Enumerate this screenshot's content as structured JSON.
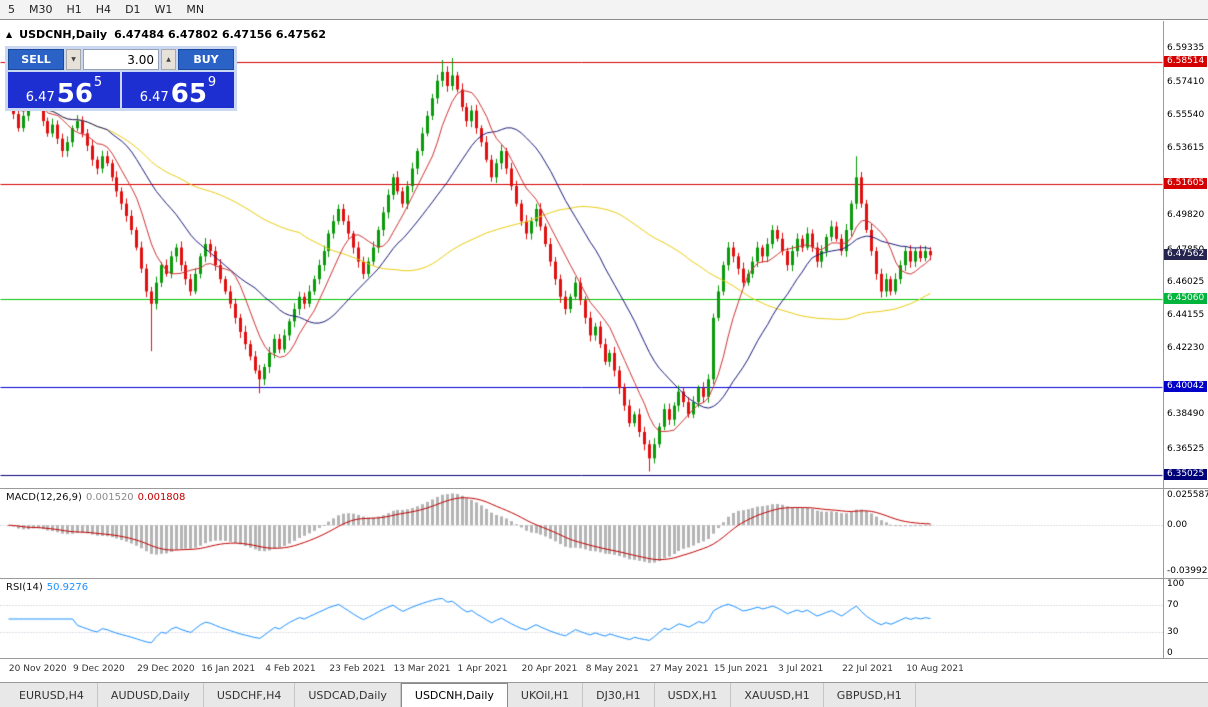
{
  "toolbar": {
    "timeframes": [
      "5",
      "M30",
      "H1",
      "H4",
      "D1",
      "W1",
      "MN"
    ]
  },
  "chart": {
    "title": "USDCNH,Daily",
    "ohlc": "6.47484 6.47802 6.47156 6.47562",
    "marker_icon": "▲"
  },
  "trade_panel": {
    "sell_label": "SELL",
    "buy_label": "BUY",
    "volume": "3.00",
    "decrement_icon": "▼",
    "increment_icon": "▲",
    "sell_price": {
      "prefix": "6.47",
      "big": "56",
      "sup": "5"
    },
    "buy_price": {
      "prefix": "6.47",
      "big": "65",
      "sup": "9"
    }
  },
  "price_axis": {
    "labels": [
      "6.59335",
      "6.57410",
      "6.55540",
      "6.53615",
      "6.49820",
      "6.47850",
      "6.46025",
      "6.44155",
      "6.42230",
      "6.38490",
      "6.36525"
    ],
    "tags": [
      {
        "text": "6.58514",
        "bg": "#d40000"
      },
      {
        "text": "6.51605",
        "bg": "#d40000"
      },
      {
        "text": "6.47562",
        "bg": "#24244e"
      },
      {
        "text": "6.45060",
        "bg": "#00b43c"
      },
      {
        "text": "6.40042",
        "bg": "#0000c8"
      },
      {
        "text": "6.35025",
        "bg": "#000078"
      }
    ]
  },
  "macd": {
    "label": "MACD(12,26,9)",
    "main_value": "0.001520",
    "signal_value": "0.001808",
    "axis": [
      "0.025587",
      "0.00",
      "-0.039928"
    ]
  },
  "rsi": {
    "label": "RSI(14)",
    "value": "50.9276",
    "axis": [
      "100",
      "70",
      "30",
      "0"
    ],
    "levels": [
      70,
      30
    ]
  },
  "date_axis": {
    "first_index": 1,
    "step_candles": 13,
    "labels": [
      "20 Nov 2020",
      "9 Dec 2020",
      "29 Dec 2020",
      "16 Jan 2021",
      "4 Feb 2021",
      "23 Feb 2021",
      "13 Mar 2021",
      "1 Apr 2021",
      "20 Apr 2021",
      "8 May 2021",
      "27 May 2021",
      "15 Jun 2021",
      "3 Jul 2021",
      "22 Jul 2021",
      "10 Aug 2021"
    ]
  },
  "tabs": {
    "items": [
      {
        "label": "EURUSD,H4"
      },
      {
        "label": "AUDUSD,Daily"
      },
      {
        "label": "USDCHF,H4"
      },
      {
        "label": "USDCAD,Daily"
      },
      {
        "label": "USDCNH,Daily",
        "active": true
      },
      {
        "label": "UKOil,H1"
      },
      {
        "label": "DJ30,H1"
      },
      {
        "label": "USDX,H1"
      },
      {
        "label": "XAUUSD,H1"
      },
      {
        "label": "GBPUSD,H1"
      }
    ]
  },
  "chart_data": {
    "type": "candlestick",
    "symbol": "USDCNH",
    "timeframe": "Daily",
    "price_axis_range": {
      "top": 6.60872,
      "bottom": 6.34282
    },
    "first_open": 6.578,
    "closes": [
      6.572,
      6.556,
      6.548,
      6.555,
      6.562,
      6.57,
      6.565,
      6.552,
      6.545,
      6.55,
      6.542,
      6.535,
      6.54,
      6.548,
      6.552,
      6.545,
      6.538,
      6.53,
      6.525,
      6.532,
      6.528,
      6.52,
      6.512,
      6.505,
      6.498,
      6.49,
      6.48,
      6.468,
      6.455,
      6.448,
      6.46,
      6.47,
      6.465,
      6.475,
      6.48,
      6.47,
      6.462,
      6.455,
      6.465,
      6.475,
      6.482,
      6.478,
      6.47,
      6.462,
      6.455,
      6.448,
      6.44,
      6.432,
      6.425,
      6.418,
      6.41,
      6.405,
      6.412,
      6.42,
      6.428,
      6.422,
      6.43,
      6.438,
      6.445,
      6.452,
      6.448,
      6.455,
      6.462,
      6.47,
      6.478,
      6.488,
      6.495,
      6.502,
      6.495,
      6.488,
      6.48,
      6.472,
      6.465,
      6.472,
      6.48,
      6.49,
      6.5,
      6.51,
      6.52,
      6.512,
      6.505,
      6.515,
      6.525,
      6.535,
      6.545,
      6.555,
      6.565,
      6.575,
      6.58,
      6.572,
      6.578,
      6.57,
      6.56,
      6.552,
      6.558,
      6.548,
      6.54,
      6.53,
      6.52,
      6.528,
      6.535,
      6.525,
      6.515,
      6.505,
      6.495,
      6.488,
      6.495,
      6.502,
      6.492,
      6.482,
      6.472,
      6.462,
      6.452,
      6.445,
      6.452,
      6.46,
      6.45,
      6.44,
      6.43,
      6.435,
      6.425,
      6.415,
      6.42,
      6.41,
      6.4,
      6.39,
      6.38,
      6.385,
      6.375,
      6.368,
      6.36,
      6.368,
      6.378,
      6.388,
      6.382,
      6.39,
      6.398,
      6.392,
      6.385,
      6.392,
      6.4,
      6.395,
      6.405,
      6.44,
      6.455,
      6.47,
      6.48,
      6.475,
      6.468,
      6.46,
      6.465,
      6.472,
      6.48,
      6.475,
      6.482,
      6.49,
      6.485,
      6.478,
      6.47,
      6.478,
      6.485,
      6.48,
      6.488,
      6.48,
      6.472,
      6.478,
      6.486,
      6.492,
      6.485,
      6.478,
      6.49,
      6.505,
      6.52,
      6.505,
      6.49,
      6.478,
      6.465,
      6.455,
      6.462,
      6.455,
      6.462,
      6.47,
      6.478,
      6.472,
      6.478,
      6.474,
      6.478,
      6.47562
    ],
    "wick_overrides": {
      "29": {
        "low": 6.421
      },
      "51": {
        "low": 6.397
      },
      "88": {
        "high": 6.5868
      },
      "90": {
        "high": 6.588
      },
      "130": {
        "low": 6.3525
      },
      "172": {
        "high": 6.532
      }
    },
    "hlines": [
      {
        "price": 6.58514,
        "color": "#d40000"
      },
      {
        "price": 6.51605,
        "color": "#d40000"
      },
      {
        "price": 6.4506,
        "color": "#00c400"
      },
      {
        "price": 6.40042,
        "color": "#0000d4"
      },
      {
        "price": 6.35025,
        "color": "#000078"
      }
    ],
    "moving_averages": [
      {
        "period": 60,
        "color": "#e8cc10"
      },
      {
        "period": 21,
        "color": "#1a1a78"
      },
      {
        "period": 8,
        "color": "#cc3333"
      }
    ],
    "macd_params": [
      12,
      26,
      9
    ],
    "rsi_period": 14,
    "style": {
      "candle_up": "#0a9a0a",
      "candle_down": "#e01010",
      "macd_hist": "#b4b4b4",
      "macd_signal": "#c00000",
      "rsi_line": "#1e90ff",
      "level_line": "#b8b8c8"
    }
  }
}
